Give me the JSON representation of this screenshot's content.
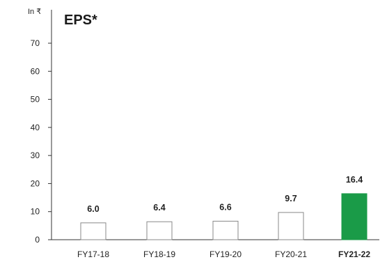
{
  "chart_data": {
    "type": "bar",
    "title": "EPS*",
    "unit_label": "In ₹",
    "categories": [
      "FY17-18",
      "FY18-19",
      "FY19-20",
      "FY20-21",
      "FY21-22"
    ],
    "values": [
      6.0,
      6.4,
      6.6,
      9.7,
      16.4
    ],
    "value_labels": [
      "6.0",
      "6.4",
      "6.6",
      "9.7",
      "16.4"
    ],
    "highlight_index": 4,
    "y_ticks": [
      0,
      10,
      20,
      30,
      40,
      50,
      60,
      70
    ],
    "ylim": [
      0,
      70
    ],
    "grid": false,
    "colors": {
      "bar_outline": "#888888",
      "bar_fill": "#ffffff",
      "highlight_fill": "#1a9b48",
      "highlight_label": "#1a9b48",
      "axis": "#333333"
    }
  }
}
